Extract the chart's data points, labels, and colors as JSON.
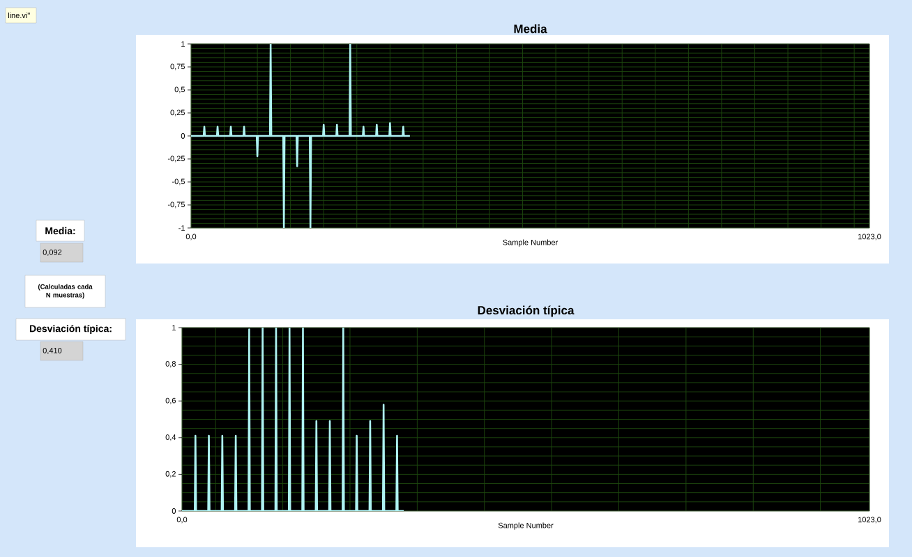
{
  "chart_data": [
    {
      "type": "line",
      "title": "Media",
      "xlabel": "Sample Number",
      "color": "#aef2f2",
      "grid": true,
      "x": [
        0,
        19,
        20,
        21,
        39,
        40,
        41,
        59,
        60,
        61,
        79,
        80,
        81,
        99,
        100,
        101,
        119,
        120,
        121,
        139,
        140,
        141,
        159,
        160,
        161,
        179,
        180,
        181,
        199,
        200,
        201,
        219,
        220,
        221,
        239,
        240,
        241,
        259,
        260,
        261,
        279,
        280,
        281,
        299,
        300,
        301,
        319,
        320,
        321,
        330
      ],
      "values": [
        0,
        0,
        0.1,
        0,
        0,
        0.1,
        0,
        0,
        0.1,
        0,
        0,
        0.1,
        0,
        0,
        -0.22,
        0,
        0,
        1,
        0,
        0,
        -1,
        0,
        0,
        -0.33,
        0,
        0,
        -1,
        0,
        0,
        0.12,
        0,
        0,
        0.12,
        0,
        0,
        1,
        0,
        0,
        0.1,
        0,
        0,
        0.12,
        0,
        0,
        0.14,
        0,
        0,
        0.1,
        0,
        0
      ],
      "xlim": [
        0,
        1023
      ],
      "ylim": [
        -1,
        1
      ],
      "xticks": [
        {
          "value": 0,
          "label": "0,0"
        },
        {
          "value": 50,
          "label": null
        },
        {
          "value": 100,
          "label": null
        },
        {
          "value": 150,
          "label": null
        },
        {
          "value": 200,
          "label": null
        },
        {
          "value": 250,
          "label": null
        },
        {
          "value": 300,
          "label": null
        },
        {
          "value": 350,
          "label": null
        },
        {
          "value": 400,
          "label": null
        },
        {
          "value": 450,
          "label": null
        },
        {
          "value": 500,
          "label": null
        },
        {
          "value": 550,
          "label": null
        },
        {
          "value": 600,
          "label": null
        },
        {
          "value": 650,
          "label": null
        },
        {
          "value": 700,
          "label": null
        },
        {
          "value": 750,
          "label": null
        },
        {
          "value": 800,
          "label": null
        },
        {
          "value": 850,
          "label": null
        },
        {
          "value": 900,
          "label": null
        },
        {
          "value": 950,
          "label": null
        },
        {
          "value": 1000,
          "label": null
        },
        {
          "value": 1023,
          "label": "1023,0"
        }
      ],
      "yticks": [
        {
          "value": -1,
          "label": "-1"
        },
        {
          "value": -0.95,
          "label": null
        },
        {
          "value": -0.9,
          "label": null
        },
        {
          "value": -0.85,
          "label": null
        },
        {
          "value": -0.8,
          "label": null
        },
        {
          "value": -0.75,
          "label": "-0,75"
        },
        {
          "value": -0.7,
          "label": null
        },
        {
          "value": -0.65,
          "label": null
        },
        {
          "value": -0.6,
          "label": null
        },
        {
          "value": -0.55,
          "label": null
        },
        {
          "value": -0.5,
          "label": "-0,5"
        },
        {
          "value": -0.45,
          "label": null
        },
        {
          "value": -0.4,
          "label": null
        },
        {
          "value": -0.35,
          "label": null
        },
        {
          "value": -0.3,
          "label": null
        },
        {
          "value": -0.25,
          "label": "-0,25"
        },
        {
          "value": -0.2,
          "label": null
        },
        {
          "value": -0.15,
          "label": null
        },
        {
          "value": -0.1,
          "label": null
        },
        {
          "value": -0.05,
          "label": null
        },
        {
          "value": 0,
          "label": "0"
        },
        {
          "value": 0.05,
          "label": null
        },
        {
          "value": 0.1,
          "label": null
        },
        {
          "value": 0.15,
          "label": null
        },
        {
          "value": 0.2,
          "label": null
        },
        {
          "value": 0.25,
          "label": "0,25"
        },
        {
          "value": 0.3,
          "label": null
        },
        {
          "value": 0.35,
          "label": null
        },
        {
          "value": 0.4,
          "label": null
        },
        {
          "value": 0.45,
          "label": null
        },
        {
          "value": 0.5,
          "label": "0,5"
        },
        {
          "value": 0.55,
          "label": null
        },
        {
          "value": 0.6,
          "label": null
        },
        {
          "value": 0.65,
          "label": null
        },
        {
          "value": 0.7,
          "label": null
        },
        {
          "value": 0.75,
          "label": "0,75"
        },
        {
          "value": 0.8,
          "label": null
        },
        {
          "value": 0.85,
          "label": null
        },
        {
          "value": 0.9,
          "label": null
        },
        {
          "value": 0.95,
          "label": null
        },
        {
          "value": 1,
          "label": "1"
        }
      ]
    },
    {
      "type": "line",
      "title": "Desviación típica",
      "xlabel": "Sample Number",
      "color": "#aef2f2",
      "grid": true,
      "x": [
        0,
        19,
        20,
        21,
        39,
        40,
        41,
        59,
        60,
        61,
        79,
        80,
        81,
        99,
        100,
        101,
        119,
        120,
        121,
        139,
        140,
        141,
        159,
        160,
        161,
        179,
        180,
        181,
        199,
        200,
        201,
        219,
        220,
        221,
        239,
        240,
        241,
        259,
        260,
        261,
        279,
        280,
        281,
        299,
        300,
        301,
        319,
        320,
        321,
        330
      ],
      "values": [
        0,
        0,
        0.41,
        0,
        0,
        0.41,
        0,
        0,
        0.41,
        0,
        0,
        0.41,
        0,
        0,
        0.99,
        0,
        0,
        1,
        0,
        0,
        1,
        0,
        0,
        1,
        0,
        0,
        1,
        0,
        0,
        0.49,
        0,
        0,
        0.49,
        0,
        0,
        1,
        0,
        0,
        0.41,
        0,
        0,
        0.49,
        0,
        0,
        0.58,
        0,
        0,
        0.41,
        0,
        0
      ],
      "xlim": [
        0,
        1023
      ],
      "ylim": [
        0,
        1
      ],
      "xticks": [
        {
          "value": 0,
          "label": "0,0"
        },
        {
          "value": 50,
          "label": null
        },
        {
          "value": 150,
          "label": null
        },
        {
          "value": 250,
          "label": null
        },
        {
          "value": 350,
          "label": null
        },
        {
          "value": 450,
          "label": null
        },
        {
          "value": 550,
          "label": null
        },
        {
          "value": 650,
          "label": null
        },
        {
          "value": 750,
          "label": null
        },
        {
          "value": 850,
          "label": null
        },
        {
          "value": 950,
          "label": null
        },
        {
          "value": 1023,
          "label": "1023,0"
        }
      ],
      "yticks": [
        {
          "value": 0,
          "label": "0"
        },
        {
          "value": 0.05,
          "label": null
        },
        {
          "value": 0.1,
          "label": null
        },
        {
          "value": 0.15,
          "label": null
        },
        {
          "value": 0.2,
          "label": "0,2"
        },
        {
          "value": 0.25,
          "label": null
        },
        {
          "value": 0.3,
          "label": null
        },
        {
          "value": 0.35,
          "label": null
        },
        {
          "value": 0.4,
          "label": "0,4"
        },
        {
          "value": 0.45,
          "label": null
        },
        {
          "value": 0.5,
          "label": null
        },
        {
          "value": 0.55,
          "label": null
        },
        {
          "value": 0.6,
          "label": "0,6"
        },
        {
          "value": 0.65,
          "label": null
        },
        {
          "value": 0.7,
          "label": null
        },
        {
          "value": 0.75,
          "label": null
        },
        {
          "value": 0.8,
          "label": "0,8"
        },
        {
          "value": 0.85,
          "label": null
        },
        {
          "value": 0.9,
          "label": null
        },
        {
          "value": 0.95,
          "label": null
        },
        {
          "value": 1,
          "label": "1"
        }
      ]
    },
    {
      "type": "other",
      "annotations": [
        "line.vi\"",
        "Media:",
        "0,092",
        "(Calculadas cada N muestras)",
        "Desviación típica:",
        "0,410"
      ]
    }
  ]
}
